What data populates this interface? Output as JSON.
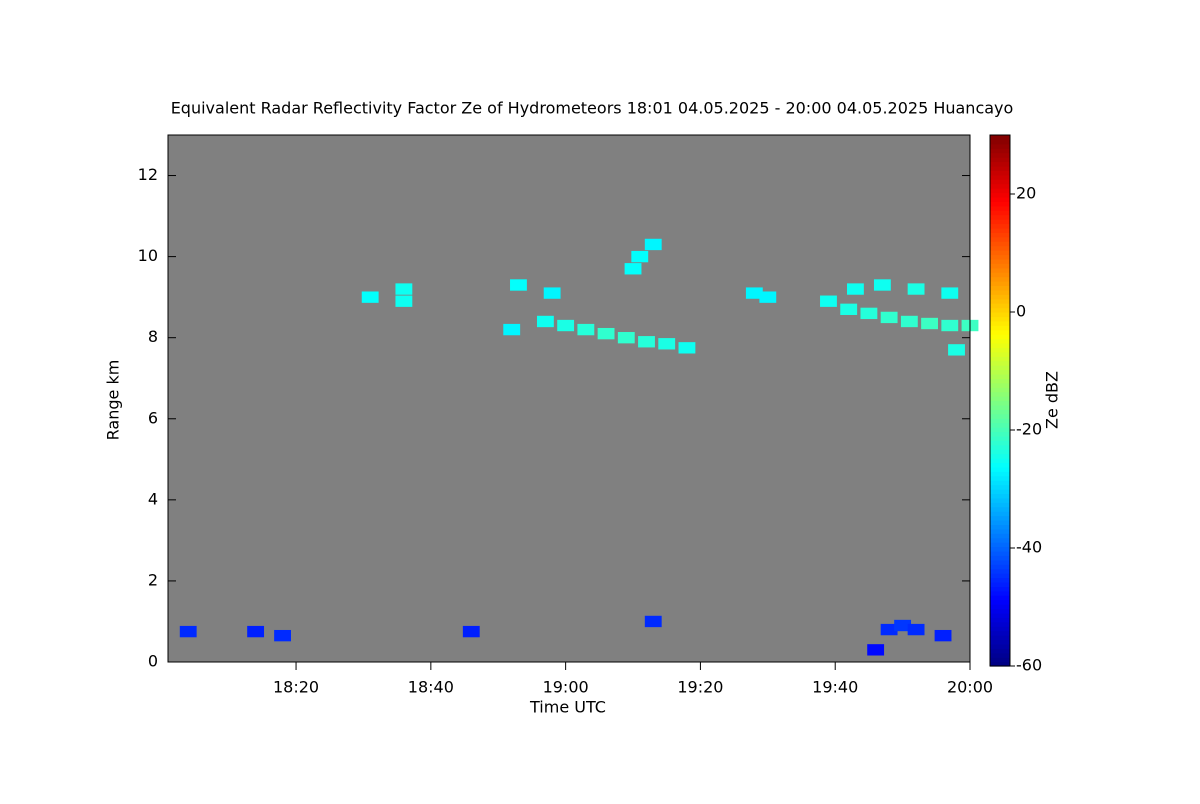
{
  "chart_data": {
    "type": "heatmap",
    "title": "Equivalent Radar Reflectivity Factor Ze of Hydrometeors   18:01 04.05.2025 - 20:00 04.05.2025 Huancayo",
    "x_label": "Time UTC",
    "y_label": "Range km",
    "colorbar_label": "Ze dBZ",
    "xlim": [
      "18:01",
      "20:00"
    ],
    "xticks": [
      "18:20",
      "18:40",
      "19:00",
      "19:20",
      "19:40",
      "20:00"
    ],
    "ylim": [
      0,
      13
    ],
    "yticks": [
      0,
      2,
      4,
      6,
      8,
      10,
      12
    ],
    "clim": [
      -60,
      30
    ],
    "cticks": [
      -60,
      -40,
      -20,
      0,
      20
    ],
    "colormap": "jet",
    "background": "#808080",
    "echoes": {
      "time": [
        "18:31",
        "18:36",
        "18:36",
        "18:52",
        "18:53",
        "18:58",
        "18:57",
        "19:00",
        "19:03",
        "19:06",
        "19:09",
        "19:12",
        "19:15",
        "19:18",
        "19:10",
        "19:11",
        "19:13",
        "19:28",
        "19:30",
        "19:39",
        "19:42",
        "19:45",
        "19:48",
        "19:51",
        "19:54",
        "19:57",
        "20:00",
        "19:43",
        "19:47",
        "19:52",
        "19:57",
        "19:58",
        "18:04",
        "18:14",
        "18:18",
        "18:46",
        "19:13",
        "19:46",
        "19:48",
        "19:50",
        "19:52",
        "19:56"
      ],
      "range": [
        9.0,
        9.2,
        8.9,
        8.2,
        9.3,
        9.1,
        8.4,
        8.3,
        8.2,
        8.1,
        8.0,
        7.9,
        7.85,
        7.75,
        9.7,
        10.0,
        10.3,
        9.1,
        9.0,
        8.9,
        8.7,
        8.6,
        8.5,
        8.4,
        8.35,
        8.3,
        8.3,
        9.2,
        9.3,
        9.2,
        9.1,
        7.7,
        0.75,
        0.75,
        0.65,
        0.75,
        1.0,
        0.3,
        0.8,
        0.9,
        0.8,
        0.65
      ],
      "ze": [
        -26,
        -25,
        -25,
        -27,
        -26,
        -27,
        -25,
        -24,
        -23,
        -22,
        -22,
        -23,
        -24,
        -25,
        -26,
        -26,
        -27,
        -27,
        -27,
        -25,
        -24,
        -23,
        -22,
        -22,
        -21,
        -22,
        -21,
        -25,
        -25,
        -24,
        -25,
        -24,
        -45,
        -46,
        -45,
        -46,
        -45,
        -48,
        -45,
        -44,
        -45,
        -46
      ]
    }
  }
}
